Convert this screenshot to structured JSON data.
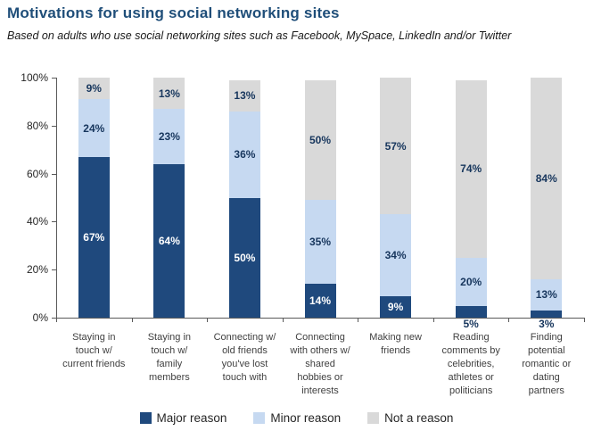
{
  "header": {
    "title": "Motivations for using social networking sites",
    "subtitle": "Based on adults who use social networking sites such as Facebook, MySpace,  LinkedIn and/or Twitter"
  },
  "chart_data": {
    "type": "bar",
    "stacked": true,
    "unit": "%",
    "title": "Motivations for using social networking sites",
    "subtitle": "Based on adults who use social networking sites such as Facebook, MySpace,  LinkedIn and/or Twitter",
    "categories": [
      "Staying in touch w/ current friends",
      "Staying in touch w/ family members",
      "Connecting w/ old friends you've lost touch with",
      "Connecting with others w/ shared hobbies or interests",
      "Making new friends",
      "Reading comments by celebrities, athletes or politicians",
      "Finding potential romantic or dating partners"
    ],
    "category_label_lines": [
      [
        "Staying in",
        "touch w/",
        "current friends"
      ],
      [
        "Staying in",
        "touch w/",
        "family",
        "members"
      ],
      [
        "Connecting w/",
        "old friends",
        "you've lost",
        "touch with"
      ],
      [
        "Connecting",
        "with others w/",
        "shared",
        "hobbies or",
        "interests"
      ],
      [
        "Making new",
        "friends"
      ],
      [
        "Reading",
        "comments by",
        "celebrities,",
        "athletes or",
        "politicians"
      ],
      [
        "Finding",
        "potential",
        "romantic or",
        "dating",
        "partners"
      ]
    ],
    "series": [
      {
        "name": "Major reason",
        "color": "#1F497D",
        "label_color": "#FFFFFF",
        "values": [
          67,
          64,
          50,
          14,
          9,
          5,
          3
        ]
      },
      {
        "name": "Minor reason",
        "color": "#C6D9F1",
        "label_color": "#17365D",
        "values": [
          24,
          23,
          36,
          35,
          34,
          20,
          13
        ]
      },
      {
        "name": "Not a reason",
        "color": "#D9D9D9",
        "label_color": "#17365D",
        "values": [
          9,
          13,
          13,
          50,
          57,
          74,
          84
        ]
      }
    ],
    "data_label_format": "{v}%",
    "below_axis_labels": [
      "",
      "",
      "",
      "",
      "",
      "5%",
      "3%"
    ],
    "y_axis": {
      "min": 0,
      "max": 100,
      "ticks": [
        "0%",
        "20%",
        "40%",
        "60%",
        "80%",
        "100%"
      ],
      "tick_values": [
        0,
        20,
        40,
        60,
        80,
        100
      ]
    },
    "legend_position": "bottom",
    "legend": [
      "Major reason",
      "Minor reason",
      "Not a reason"
    ],
    "grid": false,
    "colors": {
      "major": "#1F497D",
      "minor": "#C6D9F1",
      "not": "#D9D9D9",
      "title": "#1F4E79",
      "axis": "#595959"
    }
  }
}
